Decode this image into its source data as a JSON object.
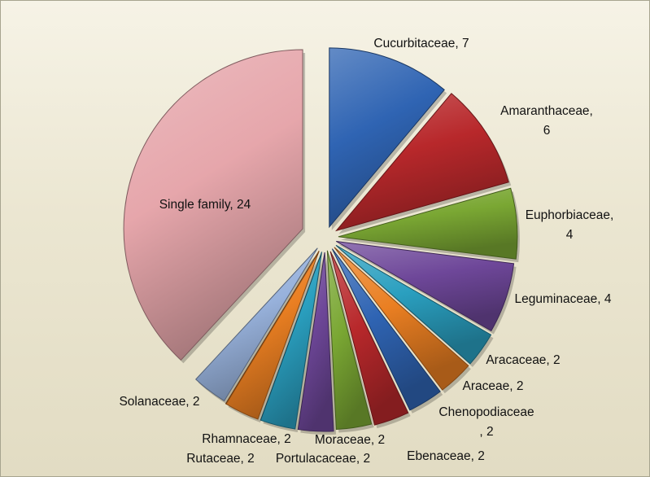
{
  "chart_data": {
    "type": "pie",
    "style": "exploded-3d",
    "slices": [
      {
        "label": "Cucurbitaceae",
        "value": 7,
        "display": "Cucurbitaceae, 7",
        "color": "#2f64b3"
      },
      {
        "label": "Amaranthaceae",
        "value": 6,
        "display": "Amaranthaceae,\n6",
        "color": "#b8282b"
      },
      {
        "label": "Euphorbiaceae",
        "value": 4,
        "display": "Euphorbiaceae,\n4",
        "color": "#7aa733"
      },
      {
        "label": "Leguminaceae",
        "value": 4,
        "display": "Leguminaceae, 4",
        "color": "#6e4799"
      },
      {
        "label": "Aracaceae",
        "value": 2,
        "display": "Aracaceae, 2",
        "color": "#2a9fbf"
      },
      {
        "label": "Araceae",
        "value": 2,
        "display": "Araceae, 2",
        "color": "#ea7f22"
      },
      {
        "label": "Chenopodiaceae",
        "value": 2,
        "display": "Chenopodiaceae\n, 2",
        "color": "#2f64b3"
      },
      {
        "label": "Ebenaceae",
        "value": 2,
        "display": "Ebenaceae, 2",
        "color": "#b8282b"
      },
      {
        "label": "Moraceae",
        "value": 2,
        "display": "Moraceae, 2",
        "color": "#7aa733"
      },
      {
        "label": "Portulacaceae",
        "value": 2,
        "display": "Portulacaceae, 2",
        "color": "#6e4799"
      },
      {
        "label": "Rutaceae",
        "value": 2,
        "display": "Rutaceae, 2",
        "color": "#2a9fbf"
      },
      {
        "label": "Rhamnaceae",
        "value": 2,
        "display": "Rhamnaceae, 2",
        "color": "#ea7f22"
      },
      {
        "label": "Solanaceae",
        "value": 2,
        "display": "Solanaceae, 2",
        "color": "#98b2dc"
      },
      {
        "label": "Single family",
        "value": 24,
        "display": "Single family, 24",
        "color": "#e6a6ab"
      }
    ]
  }
}
